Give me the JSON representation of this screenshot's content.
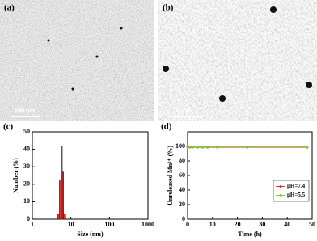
{
  "images": [
    {
      "label": "(a)",
      "scale_bar": "100 nm"
    },
    {
      "label": "(b)",
      "scale_bar": "20 nm"
    }
  ],
  "chart_data": [
    {
      "type": "histogram",
      "label": "(c)",
      "xlabel": "Size (nm)",
      "ylabel": "Number (%)",
      "bins": [
        4.5,
        5,
        5.5,
        6,
        6.5,
        7
      ],
      "values": [
        3,
        22,
        42,
        27,
        3
      ],
      "color": "#e8302a",
      "xscale": "log",
      "xlim": [
        1,
        1000
      ],
      "xticks": [
        1,
        10,
        100,
        1000
      ],
      "ylim": [
        0,
        50
      ],
      "yticks": [
        0,
        10,
        20,
        30,
        40,
        50
      ]
    },
    {
      "type": "line",
      "label": "(d)",
      "xlabel": "Time (h)",
      "ylabel": "Unreleased Mn²⁺ (%)",
      "x": [
        0,
        1,
        2,
        4,
        6,
        8,
        12,
        24,
        48
      ],
      "series": [
        {
          "name": "pH=7.4",
          "color": "#e8302a",
          "values": [
            99,
            99,
            99,
            99,
            99,
            99,
            99,
            99,
            99
          ]
        },
        {
          "name": "pH=5.5",
          "color": "#7ccc3a",
          "values": [
            98.5,
            98.5,
            98.5,
            98.5,
            98.5,
            98.5,
            98.5,
            98.5,
            98.5
          ]
        }
      ],
      "xlim": [
        0,
        50
      ],
      "xticks": [
        0,
        10,
        20,
        30,
        40,
        50
      ],
      "ylim": [
        0,
        120
      ],
      "yticks": [
        0,
        20,
        40,
        60,
        80,
        100
      ],
      "legend": "lower right"
    }
  ]
}
